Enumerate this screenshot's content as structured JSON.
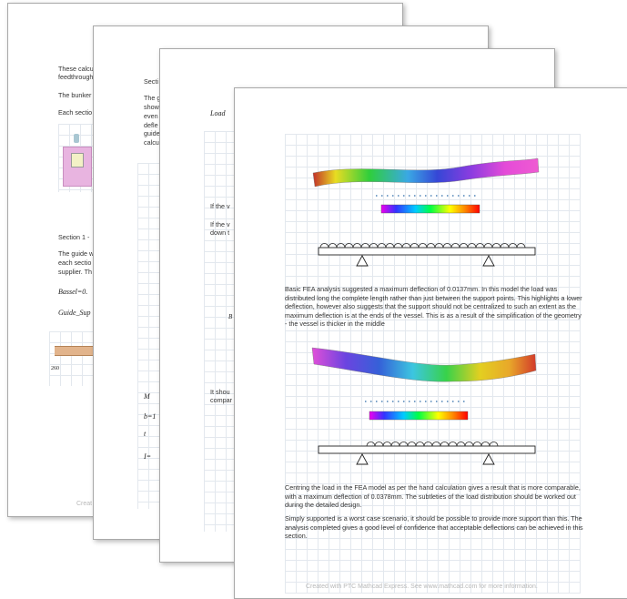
{
  "pages": {
    "page1": {
      "lines": [
        "These calcu",
        "feedthrough",
        "The bunker",
        "Each sectio",
        "Section 1 -",
        "The guide w",
        "each sectio",
        "supplier. Th"
      ],
      "math": [
        "Bassel=0.",
        "Guide_Sup"
      ],
      "dim_label": "260",
      "footer": "Creat"
    },
    "page2": {
      "lines": [
        "Secti",
        "The g",
        "show",
        "even",
        "defle",
        "guide",
        "calcu"
      ],
      "math": [
        "M",
        "b=1",
        "t",
        "I="
      ]
    },
    "page3": {
      "lines": [
        "If the v",
        "If the v",
        "down t",
        "It shou",
        "compar"
      ],
      "math": [
        "Load",
        "B"
      ]
    },
    "page4": {
      "fea_text_1": "Basic FEA analysis suggested a maximum deflection of 0.0137mm. In this model the load was distributed long the complete length rather than just between the support points. This highlights a lower deflection, however also suggests that the support should not be centralized to such an extent as the maximum deflection is at the ends of the vessel. This is as a result of the simplification of the geometry - the vessel is thicker in the middle",
      "fea_text_2": "Centring the load in the FEA model as per the hand calculation gives a result that is more comparable, with a maximum deflection of 0.0378mm. The subtleties of the load distribution should be worked out during the detailed design.",
      "fea_text_3": "Simply supported is a worst case scenario, it should be possible to provide more support than this. The analysis completed gives a good level of confidence that acceptable deflections can be achieved in this section.",
      "footer": "Created with PTC Mathcad Express. See www.mathcad.com for more information."
    }
  },
  "colors": {
    "page_border": "#a9a9a9",
    "grid_line": "#e3e8ee",
    "footer_text": "#b8b8b8",
    "vessel_pink": "#e8b4e0",
    "guide_support_tan": "#e2b48c"
  }
}
